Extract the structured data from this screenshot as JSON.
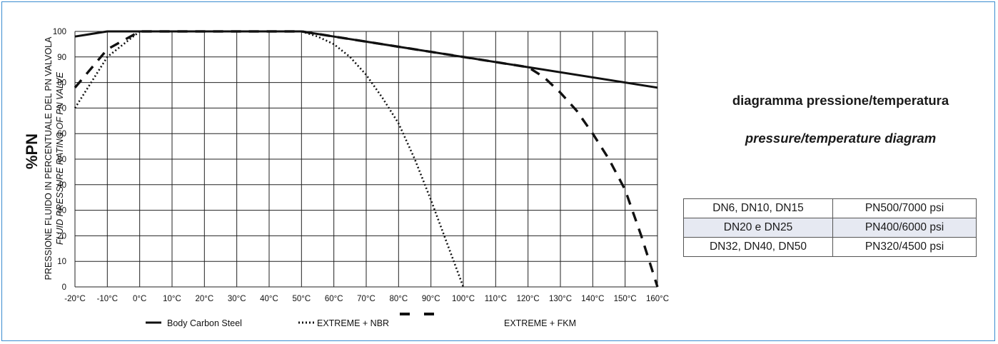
{
  "colors": {
    "frame": "#3a8ccf",
    "grid": "#222222",
    "lines": "#111111",
    "row_highlight": "#e6e9f2"
  },
  "titles": {
    "main": "diagramma pressione/temperatura",
    "sub": "pressure/temperature diagram"
  },
  "rating_table": {
    "rows": [
      {
        "size": "DN6, DN10, DN15",
        "rating": "PN500/7000 psi"
      },
      {
        "size": "DN20 e DN25",
        "rating": "PN400/6000 psi"
      },
      {
        "size": "DN32, DN40, DN50",
        "rating": "PN320/4500 psi"
      }
    ]
  },
  "chart_data": {
    "type": "line",
    "ylabel_main": "%PN",
    "ylabel_it": "PRESSIONE FLUIDO IN PERCENTUALE DEL PN VALVOLA",
    "ylabel_en": "FLUID PRESSURE RATING OF PN VALVE",
    "x_ticks": [
      "-20°C",
      "-10°C",
      "0°C",
      "10°C",
      "20°C",
      "30°C",
      "40°C",
      "50°C",
      "60°C",
      "70°C",
      "80°C",
      "90°C",
      "100°C",
      "110°C",
      "120°C",
      "130°C",
      "140°C",
      "150°C",
      "160°C"
    ],
    "y_ticks": [
      "0",
      "10",
      "20",
      "30",
      "40",
      "50",
      "60",
      "70",
      "80",
      "90",
      "100"
    ],
    "xlim": [
      -20,
      160
    ],
    "ylim": [
      0,
      100
    ],
    "grid": true,
    "legend_position": "bottom",
    "series": [
      {
        "name": "Body Carbon Steel",
        "style": "solid",
        "points": [
          [
            -20,
            98
          ],
          [
            -10,
            100
          ],
          [
            0,
            100
          ],
          [
            50,
            100
          ],
          [
            60,
            98
          ],
          [
            100,
            90
          ],
          [
            120,
            86
          ],
          [
            160,
            78
          ]
        ]
      },
      {
        "name": "EXTREME + NBR",
        "style": "dotted",
        "points": [
          [
            -20,
            70
          ],
          [
            -10,
            90
          ],
          [
            0,
            100
          ],
          [
            50,
            100
          ],
          [
            55,
            98
          ],
          [
            60,
            95
          ],
          [
            65,
            90
          ],
          [
            70,
            83
          ],
          [
            75,
            74
          ],
          [
            80,
            64
          ],
          [
            85,
            50
          ],
          [
            90,
            34
          ],
          [
            95,
            17
          ],
          [
            100,
            0
          ]
        ]
      },
      {
        "name": "EXTREME + FKM",
        "style": "dashed",
        "points": [
          [
            -20,
            78
          ],
          [
            -10,
            93
          ],
          [
            0,
            100
          ],
          [
            50,
            100
          ],
          [
            60,
            98
          ],
          [
            100,
            90
          ],
          [
            120,
            86
          ],
          [
            125,
            82
          ],
          [
            130,
            76
          ],
          [
            135,
            69
          ],
          [
            140,
            60
          ],
          [
            145,
            50
          ],
          [
            150,
            38
          ],
          [
            155,
            20
          ],
          [
            160,
            0
          ]
        ]
      }
    ]
  }
}
